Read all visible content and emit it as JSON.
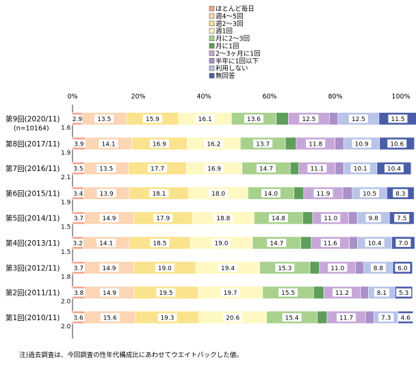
{
  "chart_data": {
    "type": "bar",
    "orientation": "horizontal",
    "stacked": true,
    "percent_scale": true,
    "xlim": [
      0,
      100
    ],
    "ticks": [
      "0%",
      "20%",
      "40%",
      "60%",
      "80%",
      "100%"
    ],
    "grid": false,
    "legend_position": "top-right",
    "categories": [
      {
        "label": "第9回(2020/11)",
        "sublabel": "(n=10164)"
      },
      {
        "label": "第8回(2017/11)",
        "sublabel": ""
      },
      {
        "label": "第7回(2016/11)",
        "sublabel": ""
      },
      {
        "label": "第6回(2015/11)",
        "sublabel": ""
      },
      {
        "label": "第5回(2014/11)",
        "sublabel": ""
      },
      {
        "label": "第4回(2013/11)",
        "sublabel": ""
      },
      {
        "label": "第3回(2012/11)",
        "sublabel": ""
      },
      {
        "label": "第2回(2011/11)",
        "sublabel": ""
      },
      {
        "label": "第1回(2010/11)",
        "sublabel": ""
      }
    ],
    "series": [
      {
        "name": "ほとんど毎日",
        "color": "#f4a58a",
        "values": [
          2.9,
          3.9,
          3.5,
          3.4,
          3.7,
          3.2,
          3.7,
          3.8,
          3.6
        ]
      },
      {
        "name": "週4～5回",
        "color": "#fcd5b4",
        "values": [
          13.5,
          14.1,
          13.5,
          13.9,
          14.9,
          14.1,
          14.9,
          14.9,
          15.6
        ]
      },
      {
        "name": "週2～3回",
        "color": "#fbe38d",
        "values": [
          15.9,
          16.9,
          17.7,
          18.1,
          17.9,
          18.5,
          19.0,
          19.5,
          19.3
        ]
      },
      {
        "name": "週1回",
        "color": "#fff8c2",
        "values": [
          16.1,
          16.2,
          16.9,
          18.0,
          18.8,
          19.0,
          19.4,
          19.7,
          20.6
        ]
      },
      {
        "name": "月に2～3回",
        "color": "#a9d18e",
        "values": [
          13.6,
          13.7,
          14.7,
          14.0,
          14.8,
          14.7,
          15.3,
          15.5,
          15.4
        ]
      },
      {
        "name": "月に1回",
        "color": "#5e9e5a",
        "values": [
          3.7,
          3.3,
          2.6,
          3.0,
          3.0,
          3.2,
          2.9,
          3.1,
          3.0
        ]
      },
      {
        "name": "2～3ヶ月に1回",
        "color": "#c7a7d8",
        "values": [
          12.5,
          11.8,
          11.1,
          11.9,
          11.0,
          11.6,
          11.0,
          11.2,
          11.7
        ]
      },
      {
        "name": "半年に1回以下",
        "color": "#a990c8",
        "values": [
          2.6,
          2.7,
          2.6,
          2.9,
          2.6,
          2.5,
          2.5,
          2.4,
          2.6
        ]
      },
      {
        "name": "利用しない",
        "color": "#b8c4e8",
        "values": [
          12.5,
          10.9,
          10.1,
          10.5,
          9.8,
          10.4,
          8.8,
          8.1,
          7.3
        ]
      },
      {
        "name": "無回答",
        "color": "#4a5ea8",
        "values": [
          11.5,
          10.6,
          10.4,
          8.3,
          7.5,
          7.0,
          6.0,
          5.3,
          4.6
        ]
      }
    ],
    "segment_labels": [
      [
        "2.9",
        "13.5",
        "15.9",
        "16.1",
        "13.6",
        "",
        "12.5",
        "",
        "12.5",
        "11.5"
      ],
      [
        "3.9",
        "14.1",
        "16.9",
        "16.2",
        "13.7",
        "",
        "11.8",
        "",
        "10.9",
        "10.6"
      ],
      [
        "3.5",
        "13.5",
        "17.7",
        "16.9",
        "14.7",
        "",
        "11.1",
        "",
        "10.1",
        "10.4"
      ],
      [
        "3.4",
        "13.9",
        "18.1",
        "18.0",
        "14.0",
        "",
        "11.9",
        "",
        "10.5",
        "8.3"
      ],
      [
        "3.7",
        "14.9",
        "17.9",
        "18.8",
        "14.8",
        "",
        "11.0",
        "",
        "9.8",
        "7.5"
      ],
      [
        "3.2",
        "14.1",
        "18.5",
        "19.0",
        "14.7",
        "",
        "11.6",
        "",
        "10.4",
        "7.0"
      ],
      [
        "3.7",
        "14.9",
        "19.0",
        "19.4",
        "15.3",
        "",
        "11.0",
        "",
        "8.8",
        "6.0"
      ],
      [
        "3.8",
        "14.9",
        "19.5",
        "19.7",
        "15.5",
        "",
        "11.2",
        "",
        "8.1",
        "5.3"
      ],
      [
        "3.6",
        "15.6",
        "19.3",
        "20.6",
        "15.4",
        "",
        "11.7",
        "",
        "7.3",
        "4.6"
      ]
    ],
    "below_bar_labels": [
      "1.6",
      "1.9",
      "2.1",
      "1.9",
      "1.5",
      "1.5",
      "1.8",
      "2.0",
      "2.0"
    ]
  },
  "footnote": "注)過去調査は、今回調査の性年代構成比にあわせてウエイトバックした値。"
}
